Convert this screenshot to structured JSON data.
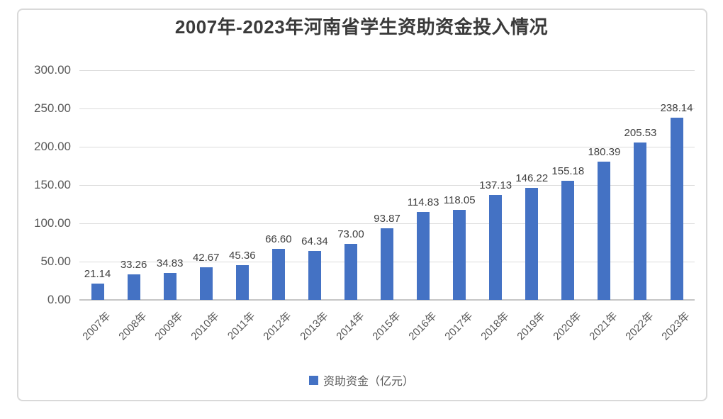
{
  "chart_data": {
    "type": "bar",
    "title": "2007年-2023年河南省学生资助资金投入情况",
    "series_name": "资助资金（亿元）",
    "categories": [
      "2007年",
      "2008年",
      "2009年",
      "2010年",
      "2011年",
      "2012年",
      "2013年",
      "2014年",
      "2015年",
      "2016年",
      "2017年",
      "2018年",
      "2019年",
      "2020年",
      "2021年",
      "2022年",
      "2023年"
    ],
    "values": [
      21.14,
      33.26,
      34.83,
      42.67,
      45.36,
      66.6,
      64.34,
      73.0,
      93.87,
      114.83,
      118.05,
      137.13,
      146.22,
      155.18,
      180.39,
      205.53,
      238.14
    ],
    "data_labels": [
      "21.14",
      "33.26",
      "34.83",
      "42.67",
      "45.36",
      "66.60",
      "64.34",
      "73.00",
      "93.87",
      "114.83",
      "118.05",
      "137.13",
      "146.22",
      "155.18",
      "180.39",
      "205.53",
      "238.14"
    ],
    "xlabel": "",
    "ylabel": "",
    "ylim": [
      0,
      300
    ],
    "ytick_step": 50,
    "ytick_labels": [
      "0.00",
      "50.00",
      "100.00",
      "150.00",
      "200.00",
      "250.00",
      "300.00"
    ],
    "grid": true,
    "legend_position": "bottom",
    "bar_color": "#4472c4",
    "gridline_color": "#dcdcdc"
  }
}
